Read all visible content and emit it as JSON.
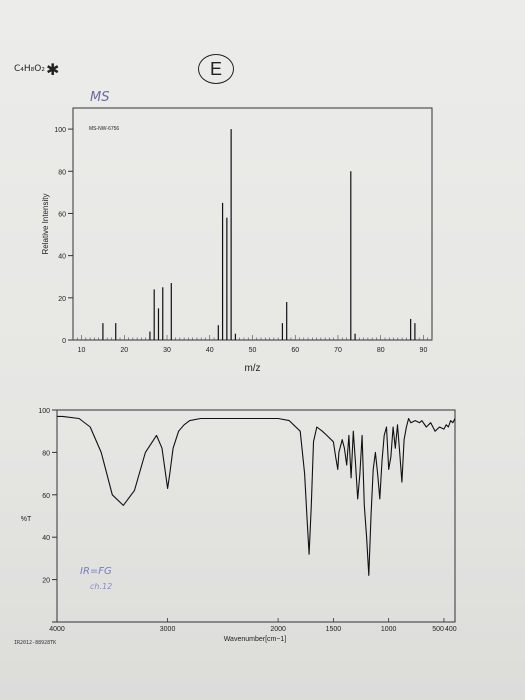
{
  "page": {
    "formula": "C₄H₈O₂",
    "star": "✱",
    "circle_label": "E",
    "ms_handwritten": "MS",
    "ir_handwritten": "IR=FG",
    "ir_handwritten2": "ch.12",
    "ir_id": "IR2012-88928TK"
  },
  "chart_data": [
    {
      "type": "bar",
      "title": "",
      "code": "MS-NW-6756",
      "xlabel": "m/z",
      "ylabel": "Relative Intensity",
      "xlim": [
        8,
        92
      ],
      "ylim": [
        0,
        110
      ],
      "xticks": [
        10,
        20,
        30,
        40,
        50,
        60,
        70,
        80,
        90
      ],
      "yticks": [
        0,
        20,
        40,
        60,
        80,
        100
      ],
      "peaks": [
        {
          "x": 15,
          "y": 8
        },
        {
          "x": 18,
          "y": 8
        },
        {
          "x": 26,
          "y": 4
        },
        {
          "x": 27,
          "y": 24
        },
        {
          "x": 28,
          "y": 15
        },
        {
          "x": 29,
          "y": 25
        },
        {
          "x": 31,
          "y": 27
        },
        {
          "x": 42,
          "y": 7
        },
        {
          "x": 43,
          "y": 65
        },
        {
          "x": 44,
          "y": 58
        },
        {
          "x": 45,
          "y": 100
        },
        {
          "x": 46,
          "y": 3
        },
        {
          "x": 57,
          "y": 8
        },
        {
          "x": 58,
          "y": 18
        },
        {
          "x": 73,
          "y": 80
        },
        {
          "x": 74,
          "y": 3
        },
        {
          "x": 87,
          "y": 10
        },
        {
          "x": 88,
          "y": 8
        }
      ]
    },
    {
      "type": "line",
      "title": "",
      "xlabel": "Wavenumber[cm−1]",
      "ylabel": "%T",
      "xlim": [
        4000,
        400
      ],
      "ylim": [
        0,
        100
      ],
      "xticks": [
        {
          "v": 4000,
          "label": "4000"
        },
        {
          "v": 3000,
          "label": "3000"
        },
        {
          "v": 2000,
          "label": "2000"
        },
        {
          "v": 1500,
          "label": "1500"
        },
        {
          "v": 1000,
          "label": "1000"
        },
        {
          "v": 500,
          "label": "500"
        },
        {
          "v": 400,
          "label": "400"
        }
      ],
      "yticks": [
        0,
        20,
        40,
        60,
        80,
        100
      ],
      "x": [
        4000,
        3950,
        3800,
        3700,
        3600,
        3500,
        3400,
        3300,
        3200,
        3100,
        3050,
        3000,
        2980,
        2950,
        2900,
        2850,
        2800,
        2700,
        2500,
        2200,
        2000,
        1900,
        1800,
        1760,
        1740,
        1720,
        1700,
        1680,
        1650,
        1600,
        1560,
        1500,
        1480,
        1460,
        1450,
        1420,
        1400,
        1380,
        1360,
        1340,
        1320,
        1300,
        1280,
        1260,
        1240,
        1220,
        1200,
        1180,
        1160,
        1140,
        1120,
        1100,
        1080,
        1060,
        1040,
        1020,
        1000,
        980,
        960,
        940,
        920,
        900,
        880,
        860,
        840,
        820,
        800,
        760,
        720,
        700,
        660,
        620,
        580,
        540,
        500,
        480,
        460,
        440,
        420,
        400
      ],
      "y": [
        97,
        97,
        96,
        92,
        80,
        60,
        55,
        62,
        80,
        88,
        82,
        63,
        70,
        82,
        90,
        93,
        95,
        96,
        96,
        96,
        96,
        95,
        90,
        70,
        50,
        32,
        55,
        85,
        92,
        90,
        88,
        85,
        78,
        72,
        80,
        86,
        82,
        74,
        88,
        68,
        90,
        75,
        58,
        70,
        88,
        55,
        40,
        22,
        50,
        72,
        80,
        70,
        58,
        76,
        88,
        92,
        72,
        78,
        92,
        82,
        93,
        80,
        66,
        86,
        92,
        96,
        94,
        95,
        94,
        95,
        92,
        94,
        90,
        92,
        91,
        93,
        92,
        95,
        94,
        96
      ]
    }
  ]
}
